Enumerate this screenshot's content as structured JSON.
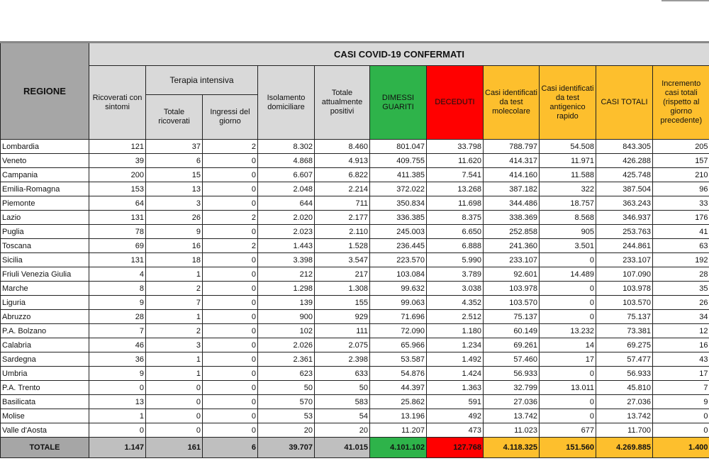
{
  "title": "CASI COVID-19 CONFERMATI",
  "headers": {
    "regione": "REGIONE",
    "ricoverati": "Ricoverati con sintomi",
    "terapia": "Terapia intensiva",
    "totale_ricoverati": "Totale ricoverati",
    "ingressi": "Ingressi del giorno",
    "isolamento": "Isolamento domiciliare",
    "totale_positivi": "Totale attualmente positivi",
    "dimessi": "DIMESSI GUARITI",
    "deceduti": "DECEDUTI",
    "molecolare": "Casi identificati da test molecolare",
    "antigenico": "Casi identificati da test antigenico rapido",
    "casi_totali": "CASI TOTALI",
    "incremento": "Incremento casi totali (rispetto al giorno precedente)"
  },
  "colors": {
    "header_gray": "#d9d9d9",
    "regione_gray": "#a6a6a6",
    "green": "#2eb34a",
    "red": "#ff0000",
    "orange": "#fdbf2d"
  },
  "rows": [
    [
      "Lombardia",
      "121",
      "37",
      "2",
      "8.302",
      "8.460",
      "801.047",
      "33.798",
      "788.797",
      "54.508",
      "843.305",
      "205"
    ],
    [
      "Veneto",
      "39",
      "6",
      "0",
      "4.868",
      "4.913",
      "409.755",
      "11.620",
      "414.317",
      "11.971",
      "426.288",
      "157"
    ],
    [
      "Campania",
      "200",
      "15",
      "0",
      "6.607",
      "6.822",
      "411.385",
      "7.541",
      "414.160",
      "11.588",
      "425.748",
      "210"
    ],
    [
      "Emilia-Romagna",
      "153",
      "13",
      "0",
      "2.048",
      "2.214",
      "372.022",
      "13.268",
      "387.182",
      "322",
      "387.504",
      "96"
    ],
    [
      "Piemonte",
      "64",
      "3",
      "0",
      "644",
      "711",
      "350.834",
      "11.698",
      "344.486",
      "18.757",
      "363.243",
      "33"
    ],
    [
      "Lazio",
      "131",
      "26",
      "2",
      "2.020",
      "2.177",
      "336.385",
      "8.375",
      "338.369",
      "8.568",
      "346.937",
      "176"
    ],
    [
      "Puglia",
      "78",
      "9",
      "0",
      "2.023",
      "2.110",
      "245.003",
      "6.650",
      "252.858",
      "905",
      "253.763",
      "41"
    ],
    [
      "Toscana",
      "69",
      "16",
      "2",
      "1.443",
      "1.528",
      "236.445",
      "6.888",
      "241.360",
      "3.501",
      "244.861",
      "63"
    ],
    [
      "Sicilia",
      "131",
      "18",
      "0",
      "3.398",
      "3.547",
      "223.570",
      "5.990",
      "233.107",
      "0",
      "233.107",
      "192"
    ],
    [
      "Friuli Venezia Giulia",
      "4",
      "1",
      "0",
      "212",
      "217",
      "103.084",
      "3.789",
      "92.601",
      "14.489",
      "107.090",
      "28"
    ],
    [
      "Marche",
      "8",
      "2",
      "0",
      "1.298",
      "1.308",
      "99.632",
      "3.038",
      "103.978",
      "0",
      "103.978",
      "35"
    ],
    [
      "Liguria",
      "9",
      "7",
      "0",
      "139",
      "155",
      "99.063",
      "4.352",
      "103.570",
      "0",
      "103.570",
      "26"
    ],
    [
      "Abruzzo",
      "28",
      "1",
      "0",
      "900",
      "929",
      "71.696",
      "2.512",
      "75.137",
      "0",
      "75.137",
      "34"
    ],
    [
      "P.A. Bolzano",
      "7",
      "2",
      "0",
      "102",
      "111",
      "72.090",
      "1.180",
      "60.149",
      "13.232",
      "73.381",
      "12"
    ],
    [
      "Calabria",
      "46",
      "3",
      "0",
      "2.026",
      "2.075",
      "65.966",
      "1.234",
      "69.261",
      "14",
      "69.275",
      "16"
    ],
    [
      "Sardegna",
      "36",
      "1",
      "0",
      "2.361",
      "2.398",
      "53.587",
      "1.492",
      "57.460",
      "17",
      "57.477",
      "43"
    ],
    [
      "Umbria",
      "9",
      "1",
      "0",
      "623",
      "633",
      "54.876",
      "1.424",
      "56.933",
      "0",
      "56.933",
      "17"
    ],
    [
      "P.A. Trento",
      "0",
      "0",
      "0",
      "50",
      "50",
      "44.397",
      "1.363",
      "32.799",
      "13.011",
      "45.810",
      "7"
    ],
    [
      "Basilicata",
      "13",
      "0",
      "0",
      "570",
      "583",
      "25.862",
      "591",
      "27.036",
      "0",
      "27.036",
      "9"
    ],
    [
      "Molise",
      "1",
      "0",
      "0",
      "53",
      "54",
      "13.196",
      "492",
      "13.742",
      "0",
      "13.742",
      "0"
    ],
    [
      "Valle d'Aosta",
      "0",
      "0",
      "0",
      "20",
      "20",
      "11.207",
      "473",
      "11.023",
      "677",
      "11.700",
      "0"
    ]
  ],
  "total": [
    "TOTALE",
    "1.147",
    "161",
    "6",
    "39.707",
    "41.015",
    "4.101.102",
    "127.768",
    "4.118.325",
    "151.560",
    "4.269.885",
    "1.400"
  ]
}
